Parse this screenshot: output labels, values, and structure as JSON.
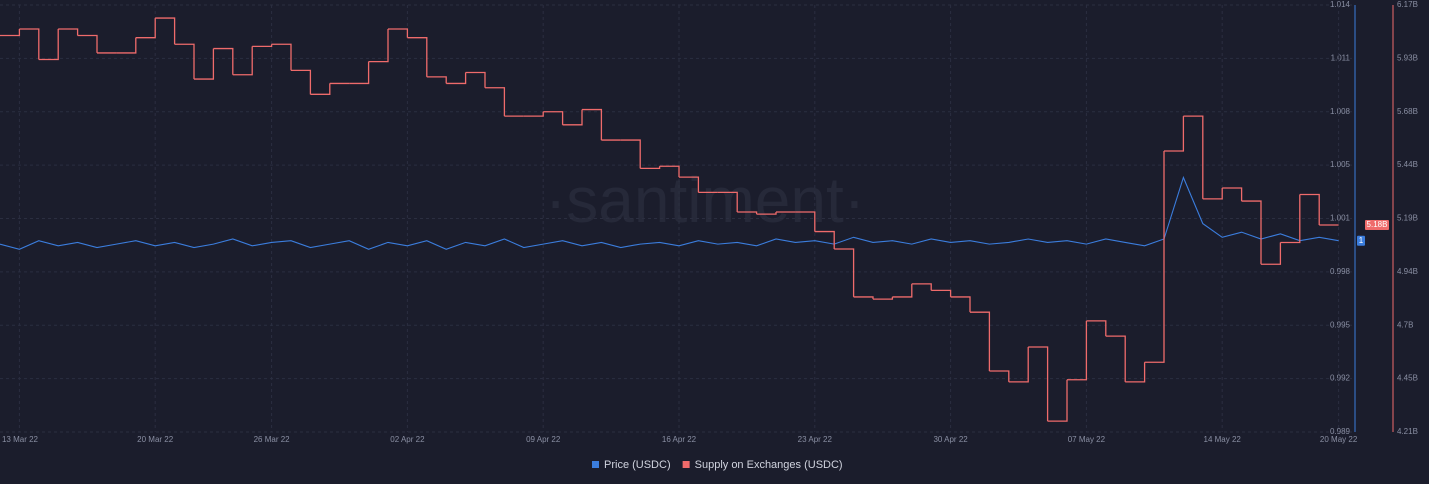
{
  "chart_data": {
    "type": "line",
    "watermark": "·santiment·",
    "grid": true,
    "x": [
      "12 Mar 22",
      "13 Mar 22",
      "14 Mar 22",
      "15 Mar 22",
      "16 Mar 22",
      "17 Mar 22",
      "18 Mar 22",
      "19 Mar 22",
      "20 Mar 22",
      "21 Mar 22",
      "22 Mar 22",
      "23 Mar 22",
      "24 Mar 22",
      "25 Mar 22",
      "26 Mar 22",
      "27 Mar 22",
      "28 Mar 22",
      "29 Mar 22",
      "30 Mar 22",
      "31 Mar 22",
      "01 Apr 22",
      "02 Apr 22",
      "03 Apr 22",
      "04 Apr 22",
      "05 Apr 22",
      "06 Apr 22",
      "07 Apr 22",
      "08 Apr 22",
      "09 Apr 22",
      "10 Apr 22",
      "11 Apr 22",
      "12 Apr 22",
      "13 Apr 22",
      "14 Apr 22",
      "15 Apr 22",
      "16 Apr 22",
      "17 Apr 22",
      "18 Apr 22",
      "19 Apr 22",
      "20 Apr 22",
      "21 Apr 22",
      "22 Apr 22",
      "23 Apr 22",
      "24 Apr 22",
      "25 Apr 22",
      "26 Apr 22",
      "27 Apr 22",
      "28 Apr 22",
      "29 Apr 22",
      "30 Apr 22",
      "01 May 22",
      "02 May 22",
      "03 May 22",
      "04 May 22",
      "05 May 22",
      "06 May 22",
      "07 May 22",
      "08 May 22",
      "09 May 22",
      "10 May 22",
      "11 May 22",
      "12 May 22",
      "13 May 22",
      "14 May 22",
      "15 May 22",
      "16 May 22",
      "17 May 22",
      "18 May 22",
      "19 May 22",
      "20 May 22"
    ],
    "xticks": [
      "13 Mar 22",
      "20 Mar 22",
      "26 Mar 22",
      "02 Apr 22",
      "09 Apr 22",
      "16 Apr 22",
      "23 Apr 22",
      "30 Apr 22",
      "07 May 22",
      "14 May 22",
      "20 May 22"
    ],
    "ylim": [
      0.989,
      1.014
    ],
    "yticks": [
      1.014,
      {
        "value": 1.010875,
        "label": "1.011"
      },
      {
        "value": 1.00775,
        "label": "1.008"
      },
      {
        "value": 1.004625,
        "label": "1.005"
      },
      {
        "value": 1.0015,
        "label": "1.001"
      },
      {
        "value": 0.998375,
        "label": "0.998"
      },
      {
        "value": 0.99525,
        "label": "0.995"
      },
      {
        "value": 0.992125,
        "label": "0.992"
      },
      0.989
    ],
    "y2lim": [
      4.21,
      6.17
    ],
    "y2ticks": [
      {
        "value": 6.17,
        "label": "6.17B"
      },
      {
        "value": 5.925,
        "label": "5.93B"
      },
      {
        "value": 5.68,
        "label": "5.68B"
      },
      {
        "value": 5.435,
        "label": "5.44B"
      },
      {
        "value": 5.19,
        "label": "5.19B"
      },
      {
        "value": 4.945,
        "label": "4.94B"
      },
      {
        "value": 4.7,
        "label": "4.7B"
      },
      {
        "value": 4.455,
        "label": "4.45B"
      },
      {
        "value": 4.21,
        "label": "4.21B"
      }
    ],
    "series": [
      {
        "name": "Price (USDC)",
        "color": "#3b7ddd",
        "last_label": "1",
        "values": [
          1.0,
          0.9997,
          1.0002,
          0.9999,
          1.0001,
          0.9998,
          1.0,
          1.0002,
          0.9999,
          1.0001,
          0.9998,
          1.0,
          1.0003,
          0.9999,
          1.0001,
          1.0002,
          0.9998,
          1.0,
          1.0002,
          0.9997,
          1.0001,
          0.9999,
          1.0002,
          0.9997,
          1.0001,
          0.9999,
          1.0003,
          0.9998,
          1.0,
          1.0002,
          0.9999,
          1.0001,
          0.9998,
          1.0,
          1.0001,
          0.9999,
          1.0002,
          1.0,
          1.0001,
          0.9999,
          1.0003,
          1.0001,
          1.0002,
          1.0,
          1.0004,
          1.0001,
          1.0002,
          1.0,
          1.0003,
          1.0001,
          1.0002,
          1.0,
          1.0001,
          1.0003,
          1.0001,
          1.0002,
          1.0,
          1.0003,
          1.0001,
          0.9999,
          1.0003,
          1.0039,
          1.0012,
          1.0004,
          1.0007,
          1.0003,
          1.0006,
          1.0002,
          1.0004,
          1.0002
        ]
      },
      {
        "name": "Supply on Exchanges (USDC)",
        "color": "#ef6b6b",
        "axis": "y2",
        "step": true,
        "last_label": "5.18B",
        "values": [
          6.03,
          6.06,
          5.92,
          6.06,
          6.03,
          5.95,
          5.95,
          6.02,
          6.11,
          5.99,
          5.83,
          5.97,
          5.85,
          5.98,
          5.99,
          5.87,
          5.76,
          5.81,
          5.81,
          5.91,
          6.06,
          6.02,
          5.84,
          5.81,
          5.86,
          5.79,
          5.66,
          5.66,
          5.68,
          5.62,
          5.69,
          5.55,
          5.55,
          5.42,
          5.43,
          5.38,
          5.31,
          5.31,
          5.22,
          5.21,
          5.22,
          5.22,
          5.13,
          5.05,
          4.83,
          4.82,
          4.83,
          4.89,
          4.86,
          4.83,
          4.76,
          4.49,
          4.44,
          4.6,
          4.26,
          4.45,
          4.72,
          4.65,
          4.44,
          4.53,
          5.5,
          5.66,
          5.28,
          5.33,
          5.27,
          4.98,
          5.08,
          5.3,
          5.16,
          null
        ]
      }
    ]
  }
}
